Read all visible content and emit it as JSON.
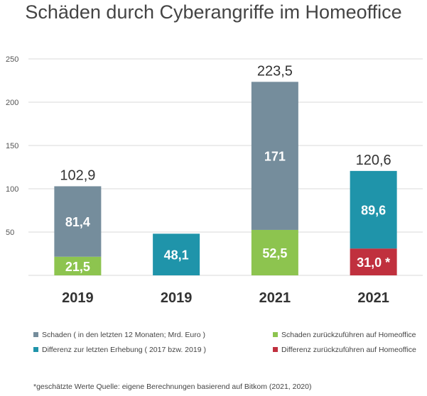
{
  "title": "Schäden durch Cyberangriffe im Homeoffice",
  "footnote": "*geschätzte Werte Quelle: eigene Berechnungen basierend auf Bitkom (2021, 2020)",
  "colors": {
    "schaden": "#758d9c",
    "homeoffice": "#8dc44f",
    "differenz": "#1f94aa",
    "differenz_homeoffice": "#c0303e"
  },
  "legend": [
    {
      "label": "Schaden ( in den letzten 12 Monaten; Mrd. Euro )",
      "color": "#758d9c"
    },
    {
      "label": "Schaden zurückzuführen auf Homeoffice",
      "color": "#8dc44f"
    },
    {
      "label": "Differenz zur letzten Erhebung ( 2017 bzw. 2019 )",
      "color": "#1f94aa"
    },
    {
      "label": "Differenz zurückzuführen auf Homeoffice",
      "color": "#c0303e"
    }
  ],
  "chart_data": {
    "type": "bar",
    "stacked": true,
    "ylim": [
      0,
      250
    ],
    "yticks": [
      50,
      100,
      150,
      200,
      250
    ],
    "grid": true,
    "legend_position": "bottom",
    "categories": [
      "2019",
      "2019",
      "2021",
      "2021"
    ],
    "bars": [
      {
        "category": "2019",
        "total_label": "102,9",
        "segments": [
          {
            "series": "homeoffice",
            "value": 21.5,
            "label": "21,5"
          },
          {
            "series": "schaden",
            "value": 81.4,
            "label": "81,4"
          }
        ]
      },
      {
        "category": "2019",
        "total_label": "",
        "segments": [
          {
            "series": "differenz",
            "value": 48.1,
            "label": "48,1"
          }
        ]
      },
      {
        "category": "2021",
        "total_label": "223,5",
        "segments": [
          {
            "series": "homeoffice",
            "value": 52.5,
            "label": "52,5"
          },
          {
            "series": "schaden",
            "value": 171,
            "label": "171"
          }
        ]
      },
      {
        "category": "2021",
        "total_label": "120,6",
        "segments": [
          {
            "series": "differenz_homeoffice",
            "value": 31.0,
            "label": "31,0 *"
          },
          {
            "series": "differenz",
            "value": 89.6,
            "label": "89,6"
          }
        ]
      }
    ]
  }
}
